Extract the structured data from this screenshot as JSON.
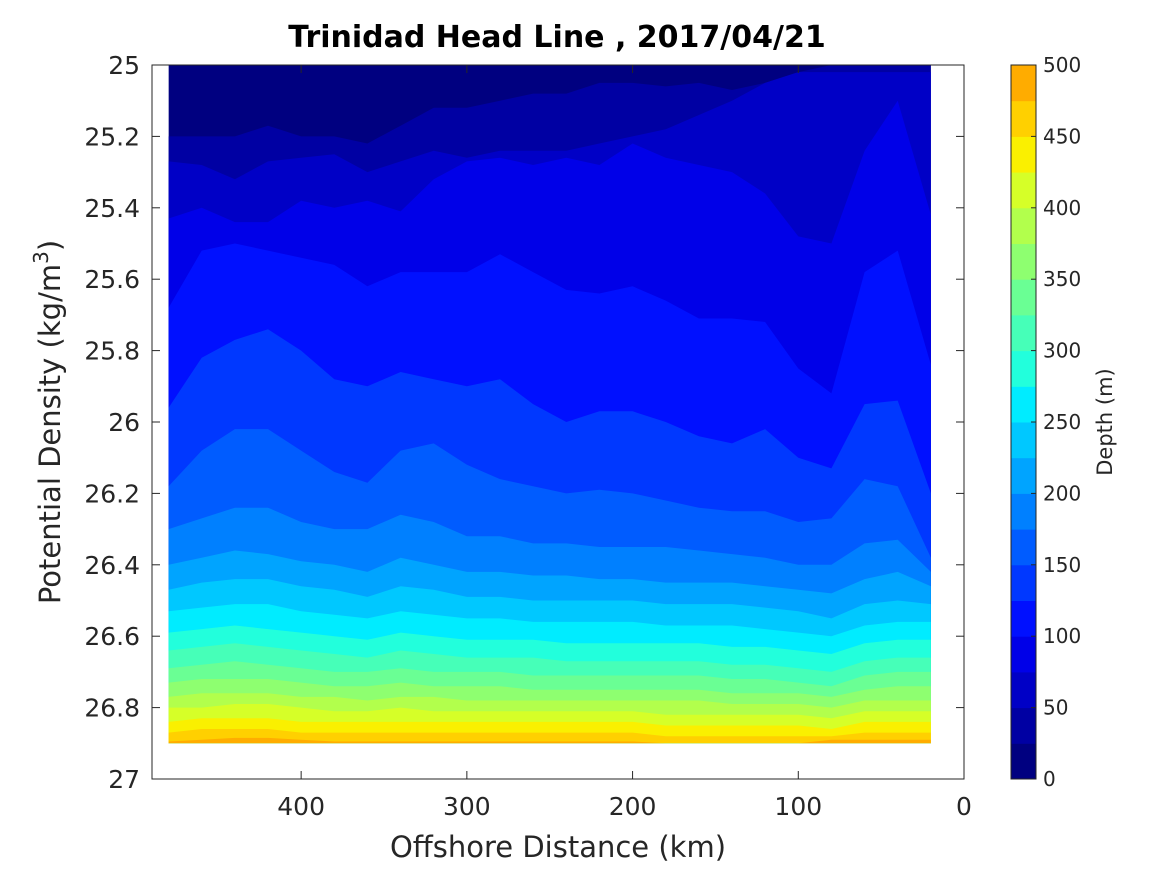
{
  "chart_data": {
    "type": "filled-contour",
    "title": "Trinidad Head Line , 2017/04/21",
    "xlabel": "Offshore Distance (km)",
    "ylabel_main": "Potential Density (kg/m",
    "ylabel_sup": "3",
    "ylabel_end": ")",
    "xlim": [
      490,
      0
    ],
    "x_reversed": true,
    "ylim": [
      25,
      27
    ],
    "y_reversed": true,
    "xticks": [
      400,
      300,
      200,
      100,
      0
    ],
    "xtick_labels": [
      "400",
      "300",
      "200",
      "100",
      "0"
    ],
    "yticks": [
      25,
      25.2,
      25.4,
      25.6,
      25.8,
      26,
      26.2,
      26.4,
      26.6,
      26.8,
      27
    ],
    "ytick_labels": [
      "25",
      "25.2",
      "25.4",
      "25.6",
      "25.8",
      "26",
      "26.2",
      "26.4",
      "26.6",
      "26.8",
      "27"
    ],
    "colorbar": {
      "label": "Depth (m)",
      "range": [
        0,
        500
      ],
      "levels_step": 25,
      "ticks": [
        0,
        50,
        100,
        150,
        200,
        250,
        300,
        350,
        400,
        450,
        500
      ],
      "tick_labels": [
        "0",
        "50",
        "100",
        "150",
        "200",
        "250",
        "300",
        "350",
        "400",
        "450",
        "500"
      ],
      "colors": [
        "#000080",
        "#0000A3",
        "#0000C6",
        "#0000E8",
        "#0010FF",
        "#0038FF",
        "#005CFF",
        "#0080FF",
        "#00A4FF",
        "#00C8FF",
        "#00ECFF",
        "#22FFDC",
        "#46FFB8",
        "#6AFF94",
        "#8EFF70",
        "#B2FF4C",
        "#D6FF28",
        "#FAF000",
        "#FFD000",
        "#FFAC00",
        "#FF8800",
        "#FF6400",
        "#FF4000",
        "#FF1C00",
        "#DD0000",
        "#B20000"
      ]
    },
    "data_extent": {
      "x_range_km": [
        480,
        20
      ],
      "density_range": [
        25.0,
        26.9
      ]
    },
    "depth_contours": [
      {
        "depth": 25,
        "x": [
          480,
          460,
          440,
          420,
          400,
          380,
          360,
          340,
          320,
          300,
          280,
          260,
          240,
          220,
          200,
          180,
          160,
          140,
          120,
          100,
          80,
          60,
          40,
          20
        ],
        "density": [
          25.2,
          25.2,
          25.2,
          25.17,
          25.2,
          25.2,
          25.22,
          25.17,
          25.12,
          25.12,
          25.1,
          25.08,
          25.08,
          25.05,
          25.05,
          25.06,
          25.05,
          25.07,
          25.05,
          25.02,
          25.0,
          25.0,
          25.0,
          25.0
        ]
      },
      {
        "depth": 50,
        "x": [
          480,
          460,
          440,
          420,
          400,
          380,
          360,
          340,
          320,
          300,
          280,
          260,
          240,
          220,
          200,
          180,
          160,
          140,
          120,
          100,
          80,
          60,
          40,
          20
        ],
        "density": [
          25.27,
          25.28,
          25.32,
          25.27,
          25.26,
          25.25,
          25.3,
          25.27,
          25.24,
          25.26,
          25.24,
          25.24,
          25.24,
          25.22,
          25.2,
          25.18,
          25.14,
          25.1,
          25.05,
          25.02,
          25.02,
          25.02,
          25.02,
          25.02
        ]
      },
      {
        "depth": 75,
        "x": [
          480,
          460,
          440,
          420,
          400,
          380,
          360,
          340,
          320,
          300,
          280,
          260,
          240,
          220,
          200,
          180,
          160,
          140,
          120,
          100,
          80,
          60,
          40,
          20
        ],
        "density": [
          25.43,
          25.4,
          25.44,
          25.44,
          25.38,
          25.4,
          25.38,
          25.41,
          25.32,
          25.27,
          25.26,
          25.28,
          25.26,
          25.28,
          25.22,
          25.26,
          25.28,
          25.3,
          25.36,
          25.48,
          25.5,
          25.24,
          25.1,
          25.42
        ]
      },
      {
        "depth": 100,
        "x": [
          480,
          460,
          440,
          420,
          400,
          380,
          360,
          340,
          320,
          300,
          280,
          260,
          240,
          220,
          200,
          180,
          160,
          140,
          120,
          100,
          80,
          60,
          40,
          20
        ],
        "density": [
          25.68,
          25.52,
          25.5,
          25.52,
          25.54,
          25.56,
          25.62,
          25.58,
          25.58,
          25.58,
          25.53,
          25.58,
          25.63,
          25.64,
          25.62,
          25.66,
          25.71,
          25.71,
          25.72,
          25.85,
          25.92,
          25.58,
          25.52,
          25.84
        ]
      },
      {
        "depth": 125,
        "x": [
          480,
          460,
          440,
          420,
          400,
          380,
          360,
          340,
          320,
          300,
          280,
          260,
          240,
          220,
          200,
          180,
          160,
          140,
          120,
          100,
          80,
          60,
          40,
          20
        ],
        "density": [
          25.96,
          25.82,
          25.77,
          25.74,
          25.8,
          25.88,
          25.9,
          25.86,
          25.88,
          25.9,
          25.88,
          25.95,
          26.0,
          25.97,
          25.97,
          26.0,
          26.04,
          26.06,
          26.02,
          26.1,
          26.13,
          25.95,
          25.94,
          26.2
        ]
      },
      {
        "depth": 150,
        "x": [
          480,
          460,
          440,
          420,
          400,
          380,
          360,
          340,
          320,
          300,
          280,
          260,
          240,
          220,
          200,
          180,
          160,
          140,
          120,
          100,
          80,
          60,
          40,
          20
        ],
        "density": [
          26.18,
          26.08,
          26.02,
          26.02,
          26.08,
          26.14,
          26.17,
          26.08,
          26.06,
          26.12,
          26.16,
          26.18,
          26.2,
          26.19,
          26.2,
          26.22,
          26.24,
          26.25,
          26.25,
          26.28,
          26.27,
          26.16,
          26.18,
          26.38
        ]
      },
      {
        "depth": 175,
        "x": [
          480,
          460,
          440,
          420,
          400,
          380,
          360,
          340,
          320,
          300,
          280,
          260,
          240,
          220,
          200,
          180,
          160,
          140,
          120,
          100,
          80,
          60,
          40,
          20
        ],
        "density": [
          26.3,
          26.27,
          26.24,
          26.24,
          26.28,
          26.3,
          26.3,
          26.26,
          26.28,
          26.32,
          26.32,
          26.34,
          26.34,
          26.35,
          26.35,
          26.35,
          26.36,
          26.37,
          26.38,
          26.4,
          26.4,
          26.34,
          26.33,
          26.42
        ]
      },
      {
        "depth": 200,
        "x": [
          480,
          460,
          440,
          420,
          400,
          380,
          360,
          340,
          320,
          300,
          280,
          260,
          240,
          220,
          200,
          180,
          160,
          140,
          120,
          100,
          80,
          60,
          40,
          20
        ],
        "density": [
          26.4,
          26.38,
          26.36,
          26.37,
          26.39,
          26.4,
          26.42,
          26.38,
          26.4,
          26.42,
          26.42,
          26.43,
          26.43,
          26.44,
          26.44,
          26.45,
          26.45,
          26.45,
          26.46,
          26.47,
          26.48,
          26.44,
          26.42,
          26.46
        ]
      },
      {
        "depth": 225,
        "x": [
          480,
          460,
          440,
          420,
          400,
          380,
          360,
          340,
          320,
          300,
          280,
          260,
          240,
          220,
          200,
          180,
          160,
          140,
          120,
          100,
          80,
          60,
          40,
          20
        ],
        "density": [
          26.47,
          26.45,
          26.44,
          26.44,
          26.46,
          26.47,
          26.49,
          26.46,
          26.47,
          26.49,
          26.49,
          26.5,
          26.5,
          26.5,
          26.5,
          26.51,
          26.51,
          26.51,
          26.52,
          26.53,
          26.55,
          26.51,
          26.5,
          26.51
        ]
      },
      {
        "depth": 250,
        "x": [
          480,
          460,
          440,
          420,
          400,
          380,
          360,
          340,
          320,
          300,
          280,
          260,
          240,
          220,
          200,
          180,
          160,
          140,
          120,
          100,
          80,
          60,
          40,
          20
        ],
        "density": [
          26.53,
          26.52,
          26.51,
          26.51,
          26.53,
          26.54,
          26.55,
          26.53,
          26.54,
          26.55,
          26.55,
          26.56,
          26.56,
          26.56,
          26.56,
          26.57,
          26.57,
          26.57,
          26.58,
          26.59,
          26.6,
          26.57,
          26.56,
          26.56
        ]
      },
      {
        "depth": 275,
        "x": [
          480,
          460,
          440,
          420,
          400,
          380,
          360,
          340,
          320,
          300,
          280,
          260,
          240,
          220,
          200,
          180,
          160,
          140,
          120,
          100,
          80,
          60,
          40,
          20
        ],
        "density": [
          26.59,
          26.58,
          26.57,
          26.58,
          26.59,
          26.6,
          26.61,
          26.59,
          26.6,
          26.61,
          26.61,
          26.61,
          26.62,
          26.62,
          26.62,
          26.62,
          26.62,
          26.63,
          26.63,
          26.64,
          26.65,
          26.62,
          26.61,
          26.61
        ]
      },
      {
        "depth": 300,
        "x": [
          480,
          460,
          440,
          420,
          400,
          380,
          360,
          340,
          320,
          300,
          280,
          260,
          240,
          220,
          200,
          180,
          160,
          140,
          120,
          100,
          80,
          60,
          40,
          20
        ],
        "density": [
          26.64,
          26.63,
          26.62,
          26.63,
          26.64,
          26.65,
          26.66,
          26.64,
          26.65,
          26.66,
          26.66,
          26.66,
          26.67,
          26.67,
          26.67,
          26.67,
          26.67,
          26.68,
          26.68,
          26.69,
          26.7,
          26.67,
          26.66,
          26.66
        ]
      },
      {
        "depth": 325,
        "x": [
          480,
          460,
          440,
          420,
          400,
          380,
          360,
          340,
          320,
          300,
          280,
          260,
          240,
          220,
          200,
          180,
          160,
          140,
          120,
          100,
          80,
          60,
          40,
          20
        ],
        "density": [
          26.69,
          26.68,
          26.67,
          26.68,
          26.69,
          26.7,
          26.7,
          26.69,
          26.7,
          26.7,
          26.7,
          26.71,
          26.71,
          26.71,
          26.71,
          26.71,
          26.71,
          26.72,
          26.72,
          26.73,
          26.74,
          26.71,
          26.7,
          26.7
        ]
      },
      {
        "depth": 350,
        "x": [
          480,
          460,
          440,
          420,
          400,
          380,
          360,
          340,
          320,
          300,
          280,
          260,
          240,
          220,
          200,
          180,
          160,
          140,
          120,
          100,
          80,
          60,
          40,
          20
        ],
        "density": [
          26.73,
          26.72,
          26.72,
          26.72,
          26.73,
          26.74,
          26.74,
          26.73,
          26.74,
          26.74,
          26.74,
          26.75,
          26.75,
          26.75,
          26.75,
          26.75,
          26.75,
          26.76,
          26.76,
          26.76,
          26.77,
          26.75,
          26.74,
          26.74
        ]
      },
      {
        "depth": 375,
        "x": [
          480,
          460,
          440,
          420,
          400,
          380,
          360,
          340,
          320,
          300,
          280,
          260,
          240,
          220,
          200,
          180,
          160,
          140,
          120,
          100,
          80,
          60,
          40,
          20
        ],
        "density": [
          26.77,
          26.76,
          26.76,
          26.76,
          26.77,
          26.77,
          26.78,
          26.77,
          26.77,
          26.78,
          26.78,
          26.78,
          26.78,
          26.78,
          26.78,
          26.78,
          26.78,
          26.79,
          26.79,
          26.79,
          26.8,
          26.78,
          26.78,
          26.78
        ]
      },
      {
        "depth": 400,
        "x": [
          480,
          460,
          440,
          420,
          400,
          380,
          360,
          340,
          320,
          300,
          280,
          260,
          240,
          220,
          200,
          180,
          160,
          140,
          120,
          100,
          80,
          60,
          40,
          20
        ],
        "density": [
          26.8,
          26.8,
          26.79,
          26.79,
          26.8,
          26.81,
          26.81,
          26.8,
          26.81,
          26.81,
          26.81,
          26.81,
          26.81,
          26.81,
          26.81,
          26.82,
          26.82,
          26.82,
          26.82,
          26.82,
          26.83,
          26.81,
          26.81,
          26.81
        ]
      },
      {
        "depth": 425,
        "x": [
          480,
          460,
          440,
          420,
          400,
          380,
          360,
          340,
          320,
          300,
          280,
          260,
          240,
          220,
          200,
          180,
          160,
          140,
          120,
          100,
          80,
          60,
          40,
          20
        ],
        "density": [
          26.84,
          26.83,
          26.83,
          26.83,
          26.84,
          26.84,
          26.84,
          26.84,
          26.84,
          26.84,
          26.84,
          26.84,
          26.84,
          26.84,
          26.84,
          26.85,
          26.85,
          26.85,
          26.85,
          26.85,
          26.86,
          26.84,
          26.84,
          26.84
        ]
      },
      {
        "depth": 450,
        "x": [
          480,
          460,
          440,
          420,
          400,
          380,
          360,
          340,
          320,
          300,
          280,
          260,
          240,
          220,
          200,
          180,
          160,
          140,
          120,
          100,
          80,
          60,
          40,
          20
        ],
        "density": [
          26.87,
          26.86,
          26.86,
          26.86,
          26.87,
          26.87,
          26.87,
          26.87,
          26.87,
          26.87,
          26.87,
          26.87,
          26.87,
          26.87,
          26.87,
          26.88,
          26.88,
          26.88,
          26.88,
          26.88,
          26.88,
          26.87,
          26.87,
          26.87
        ]
      },
      {
        "depth": 475,
        "x": [
          480,
          460,
          440,
          420,
          400,
          380,
          360,
          340,
          320,
          300,
          280,
          260,
          240,
          220,
          200,
          180,
          160,
          140,
          120,
          100,
          80,
          60,
          40,
          20
        ],
        "density": [
          26.895,
          26.89,
          26.885,
          26.885,
          26.89,
          26.895,
          26.895,
          26.895,
          26.895,
          26.895,
          26.895,
          26.895,
          26.895,
          26.895,
          26.895,
          26.9,
          26.9,
          26.9,
          26.9,
          26.9,
          26.89,
          26.89,
          26.89,
          26.89
        ]
      }
    ]
  }
}
